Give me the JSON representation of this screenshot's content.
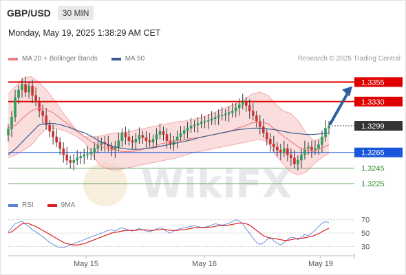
{
  "header": {
    "pair": "GBP/USD",
    "timeframe": "30 MIN"
  },
  "datetime": "Monday, May 19, 2025 1:38:29 AM CET",
  "source": "Research © 2025 Trading Central",
  "watermark": "WikiFX",
  "legend_main": [
    {
      "label": "MA 20 + Bollinger Bands",
      "color": "#f08080"
    },
    {
      "label": "MA 50",
      "color": "#3a5b8c"
    }
  ],
  "legend_rsi": [
    {
      "label": "RSI",
      "color": "#5a7fd6"
    },
    {
      "label": "9MA",
      "color": "#d92020"
    }
  ],
  "chart_data": {
    "type": "candlestick",
    "ylim": [
      1.3212,
      1.3372
    ],
    "x_labels": [
      "May 15",
      "May 16",
      "May 19"
    ],
    "levels": [
      {
        "value": 1.3355,
        "label": "1.3355",
        "kind": "resistance",
        "color": "#e00000"
      },
      {
        "value": 1.333,
        "label": "1.3330",
        "kind": "resistance",
        "color": "#e00000"
      },
      {
        "value": 1.3299,
        "label": "1.3299",
        "kind": "last",
        "color": "#333333"
      },
      {
        "value": 1.3265,
        "label": "1.3265",
        "kind": "pivot",
        "color": "#1a56db"
      },
      {
        "value": 1.3245,
        "label": "1.3245",
        "kind": "support",
        "color": "#2e8b2e"
      },
      {
        "value": 1.3225,
        "label": "1.3225",
        "kind": "support",
        "color": "#2e8b2e"
      }
    ],
    "close": [
      1.3295,
      1.331,
      1.3335,
      1.3345,
      1.3352,
      1.3342,
      1.335,
      1.3338,
      1.333,
      1.3318,
      1.3312,
      1.33,
      1.3292,
      1.3285,
      1.3278,
      1.327,
      1.3262,
      1.3255,
      1.3252,
      1.3255,
      1.3258,
      1.326,
      1.3262,
      1.3263,
      1.3265,
      1.327,
      1.3275,
      1.3278,
      1.3276,
      1.3272,
      1.3268,
      1.3272,
      1.328,
      1.329,
      1.3285,
      1.328,
      1.3278,
      1.3282,
      1.3287,
      1.3284,
      1.328,
      1.3278,
      1.3282,
      1.3288,
      1.3292,
      1.3288,
      1.328,
      1.3275,
      1.328,
      1.3285,
      1.3289,
      1.3293,
      1.3296,
      1.3299,
      1.33,
      1.3302,
      1.3304,
      1.3305,
      1.3306,
      1.3308,
      1.331,
      1.3312,
      1.3313,
      1.3314,
      1.3316,
      1.3318,
      1.3322,
      1.3326,
      1.333,
      1.3325,
      1.3318,
      1.3312,
      1.3305,
      1.3298,
      1.329,
      1.3282,
      1.3276,
      1.3272,
      1.3268,
      1.3265,
      1.327,
      1.3262,
      1.3258,
      1.325,
      1.3255,
      1.3262,
      1.327,
      1.3272,
      1.3268,
      1.327,
      1.3275,
      1.3285,
      1.3296,
      1.3299
    ],
    "ma20_bollinger": {
      "mid": [
        1.3296,
        1.33,
        1.331,
        1.3318,
        1.3322,
        1.332,
        1.3315,
        1.3307,
        1.33,
        1.3292,
        1.3285,
        1.3278,
        1.3273,
        1.327,
        1.3268,
        1.3266,
        1.3266,
        1.3267,
        1.327,
        1.3272,
        1.3276,
        1.3278,
        1.328,
        1.3281,
        1.3283,
        1.3284,
        1.3286,
        1.3288,
        1.329,
        1.3292,
        1.3296,
        1.3299,
        1.3303,
        1.3304,
        1.3302,
        1.3294,
        1.3286,
        1.3279,
        1.3272,
        1.3268,
        1.3266,
        1.327,
        1.3275
      ],
      "upper": [
        1.334,
        1.335,
        1.336,
        1.3362,
        1.3355,
        1.3345,
        1.3332,
        1.3318,
        1.3305,
        1.3293,
        1.3285,
        1.3285,
        1.3286,
        1.3288,
        1.329,
        1.329,
        1.3292,
        1.3294,
        1.3296,
        1.3298,
        1.33,
        1.3302,
        1.3304,
        1.3305,
        1.3307,
        1.3309,
        1.3312,
        1.3316,
        1.332,
        1.3324,
        1.3328,
        1.3333,
        1.334,
        1.3342,
        1.3338,
        1.3327,
        1.3318,
        1.3315,
        1.3305,
        1.329,
        1.328,
        1.3283,
        1.3287
      ],
      "lower": [
        1.3258,
        1.3262,
        1.3268,
        1.3274,
        1.3286,
        1.3296,
        1.3296,
        1.3294,
        1.329,
        1.3285,
        1.3278,
        1.3262,
        1.3248,
        1.3244,
        1.3242,
        1.3244,
        1.3246,
        1.3248,
        1.325,
        1.3252,
        1.3254,
        1.3256,
        1.3258,
        1.3261,
        1.3264,
        1.3266,
        1.3268,
        1.327,
        1.3272,
        1.3274,
        1.3276,
        1.3278,
        1.328,
        1.3282,
        1.3278,
        1.3262,
        1.325,
        1.324,
        1.3236,
        1.324,
        1.325,
        1.3258,
        1.3264
      ]
    },
    "ma50": [
      1.3262,
      1.327,
      1.328,
      1.329,
      1.33,
      1.3302,
      1.3302,
      1.33,
      1.3297,
      1.3293,
      1.329,
      1.3285,
      1.3279,
      1.3275,
      1.3272,
      1.327,
      1.3269,
      1.3269,
      1.327,
      1.3271,
      1.3273,
      1.3275,
      1.3277,
      1.3279,
      1.3281,
      1.3284,
      1.3286,
      1.3288,
      1.329,
      1.3292,
      1.3294,
      1.3295,
      1.3296,
      1.3296,
      1.3295,
      1.3294,
      1.3292,
      1.329,
      1.3289,
      1.3288,
      1.3288,
      1.3289,
      1.329
    ],
    "rsi_axis": {
      "min": 20,
      "max": 80,
      "ticks": [
        70,
        50,
        30
      ]
    },
    "rsi": [
      52,
      58,
      64,
      66,
      68,
      63,
      60,
      55,
      52,
      48,
      45,
      40,
      36,
      33,
      30,
      28,
      28,
      30,
      32,
      34,
      36,
      38,
      40,
      42,
      44,
      46,
      48,
      50,
      52,
      54,
      55,
      53,
      56,
      58,
      56,
      54,
      53,
      55,
      57,
      55,
      53,
      52,
      54,
      56,
      58,
      56,
      52,
      50,
      53,
      55,
      57,
      58,
      59,
      60,
      61,
      60,
      58,
      59,
      60,
      62,
      64,
      63,
      62,
      63,
      65,
      67,
      70,
      68,
      64,
      56,
      50,
      42,
      36,
      33,
      35,
      40,
      44,
      38,
      35,
      32,
      36,
      40,
      44,
      43,
      40,
      44,
      48,
      46,
      50,
      54,
      60,
      65,
      67,
      66
    ],
    "rsi_ma": [
      50,
      52,
      56,
      60,
      64,
      65,
      64,
      62,
      60,
      57,
      54,
      51,
      48,
      45,
      42,
      39,
      36,
      34,
      33,
      32,
      32,
      33,
      34,
      36,
      38,
      40,
      42,
      44,
      46,
      48,
      50,
      51,
      52,
      53,
      54,
      54,
      54,
      54,
      55,
      55,
      55,
      54,
      54,
      55,
      55,
      56,
      55,
      54,
      54,
      54,
      55,
      55,
      56,
      57,
      58,
      58,
      58,
      58,
      59,
      59,
      60,
      61,
      61,
      61,
      62,
      63,
      64,
      65,
      65,
      64,
      62,
      58,
      54,
      50,
      46,
      44,
      42,
      42,
      41,
      40,
      39,
      39,
      40,
      41,
      42,
      42,
      43,
      44,
      45,
      47,
      49,
      52,
      55,
      57
    ]
  }
}
